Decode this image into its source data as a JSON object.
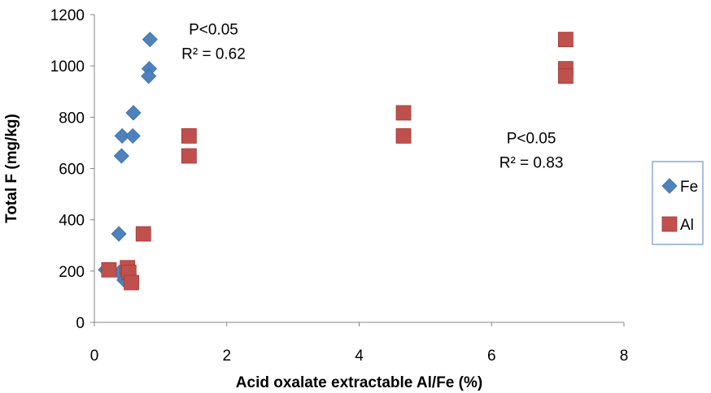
{
  "chart_data": {
    "type": "scatter",
    "xlabel": "Acid oxalate extractable Al/Fe (%)",
    "ylabel": "Total F (mg/kg)",
    "xlim": [
      0,
      8
    ],
    "ylim": [
      0,
      1200
    ],
    "x_ticks": [
      "0",
      "2",
      "4",
      "6",
      "8"
    ],
    "y_ticks": [
      "0",
      "200",
      "400",
      "600",
      "800",
      "1000",
      "1200"
    ],
    "grid": false,
    "legend_position": "right",
    "series": [
      {
        "name": "Fe",
        "marker": "diamond",
        "color": "#4F81BD",
        "points": [
          {
            "x": 0.84,
            "y": 1103
          },
          {
            "x": 0.83,
            "y": 989
          },
          {
            "x": 0.82,
            "y": 960
          },
          {
            "x": 0.59,
            "y": 817
          },
          {
            "x": 0.42,
            "y": 727
          },
          {
            "x": 0.58,
            "y": 727
          },
          {
            "x": 0.41,
            "y": 649
          },
          {
            "x": 0.37,
            "y": 345
          },
          {
            "x": 0.17,
            "y": 205
          },
          {
            "x": 0.38,
            "y": 195
          },
          {
            "x": 0.45,
            "y": 165
          }
        ]
      },
      {
        "name": "Al",
        "marker": "square",
        "color": "#C0504D",
        "points": [
          {
            "x": 7.12,
            "y": 1103
          },
          {
            "x": 7.12,
            "y": 989
          },
          {
            "x": 7.12,
            "y": 960
          },
          {
            "x": 4.67,
            "y": 817
          },
          {
            "x": 4.67,
            "y": 727
          },
          {
            "x": 1.43,
            "y": 727
          },
          {
            "x": 1.43,
            "y": 649
          },
          {
            "x": 0.74,
            "y": 345
          },
          {
            "x": 0.22,
            "y": 205
          },
          {
            "x": 0.5,
            "y": 213
          },
          {
            "x": 0.52,
            "y": 195
          },
          {
            "x": 0.56,
            "y": 155
          }
        ]
      }
    ],
    "annotations": [
      {
        "lines": [
          "P<0.05",
          "R² = 0.62"
        ],
        "anchor_x": 1.8,
        "anchor_y": 1145
      },
      {
        "lines": [
          "P<0.05",
          "R² = 0.83"
        ],
        "anchor_x": 6.6,
        "anchor_y": 720
      }
    ]
  }
}
